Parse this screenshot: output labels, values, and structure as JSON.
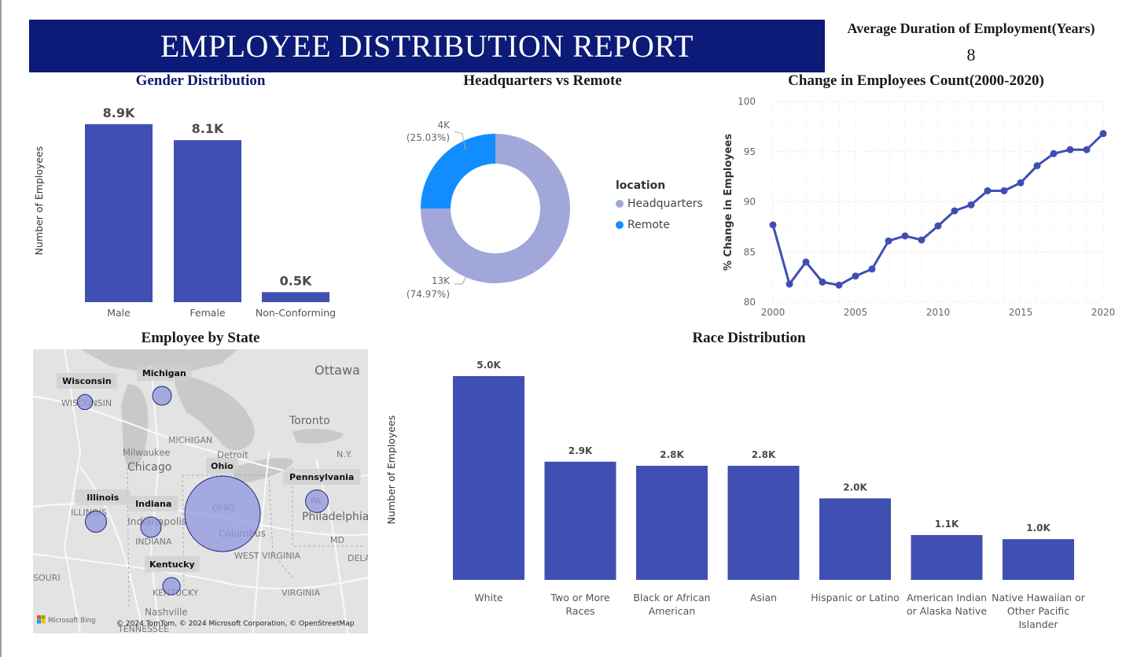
{
  "header": {
    "title": "EMPLOYEE DISTRIBUTION REPORT",
    "kpi_label": "Average Duration of Employment(Years)",
    "kpi_value": "8"
  },
  "colors": {
    "banner": "#0c1a78",
    "bar": "#3f4fb2",
    "headquarters": "#a2a7da",
    "remote": "#118dff",
    "line": "#3f4fb2",
    "bubble": "#8f95dd"
  },
  "gender": {
    "title": "Gender Distribution",
    "chart_data": {
      "type": "bar",
      "categories": [
        "Male",
        "Female",
        "Non-Conforming"
      ],
      "values": [
        8.9,
        8.1,
        0.5
      ],
      "labels": [
        "8.9K",
        "8.1K",
        "0.5K"
      ],
      "ylabel": "Number of Employees",
      "ylim": [
        0,
        9.6
      ]
    }
  },
  "location": {
    "title": "Headquarters vs Remote",
    "legend_title": "location",
    "chart_data": {
      "type": "pie",
      "categories": [
        "Headquarters",
        "Remote"
      ],
      "values": [
        74.97,
        25.03
      ],
      "labels": [
        "13K",
        "4K"
      ],
      "pct_labels": [
        "(74.97%)",
        "(25.03%)"
      ]
    }
  },
  "change": {
    "title": "Change in Employees Count(2000-2020)",
    "chart_data": {
      "type": "line",
      "x": [
        2000,
        2001,
        2002,
        2003,
        2004,
        2005,
        2006,
        2007,
        2008,
        2009,
        2010,
        2011,
        2012,
        2013,
        2014,
        2015,
        2016,
        2017,
        2018,
        2019,
        2020
      ],
      "values": [
        87.7,
        81.8,
        84.0,
        82.0,
        81.7,
        82.6,
        83.3,
        86.1,
        86.6,
        86.2,
        87.6,
        89.1,
        89.7,
        91.1,
        91.1,
        91.9,
        93.6,
        94.8,
        95.2,
        95.2,
        96.8
      ],
      "ylabel": "% Change in Employees",
      "ylim": [
        80,
        100
      ],
      "yticks": [
        "80",
        "85",
        "90",
        "95",
        "100"
      ],
      "xticks": [
        "2000",
        "2005",
        "2010",
        "2015",
        "2020"
      ],
      "grid": true
    }
  },
  "states": {
    "title": "Employee by State",
    "bubbles": [
      {
        "name": "Wisconsin",
        "size": 0.2
      },
      {
        "name": "Michigan",
        "size": 0.25
      },
      {
        "name": "Ohio",
        "size": 1.0
      },
      {
        "name": "Pennsylvania",
        "size": 0.3
      },
      {
        "name": "Illinois",
        "size": 0.28
      },
      {
        "name": "Indiana",
        "size": 0.27
      },
      {
        "name": "Kentucky",
        "size": 0.23
      }
    ],
    "place_labels": [
      "Ottawa",
      "Toronto",
      "WISCONSIN",
      "MICHIGAN",
      "Milwaukee",
      "Chicago",
      "Detroit",
      "N.Y.",
      "ILLINOIS",
      "Indianapolis",
      "INDIANA",
      "OHIO",
      "Columbus",
      "Philadelphia",
      "PA",
      "MD",
      "WEST VIRGINIA",
      "DELA",
      "SOURI",
      "KENTUCKY",
      "VIRGINIA",
      "Nashville",
      "TENNESSEE"
    ],
    "attribution": "© 2024 TomTom, © 2024 Microsoft Corporation, © OpenStreetMap",
    "logo": "Microsoft Bing"
  },
  "race": {
    "title": "Race Distribution",
    "chart_data": {
      "type": "bar",
      "categories": [
        "White",
        "Two or More Races",
        "Black or African American",
        "Asian",
        "Hispanic or Latino",
        "American Indian or Alaska Native",
        "Native Hawaiian or Other Pacific Islander"
      ],
      "category_lines": [
        [
          "White"
        ],
        [
          "Two or More",
          "Races"
        ],
        [
          "Black or African",
          "American"
        ],
        [
          "Asian"
        ],
        [
          "Hispanic or Latino"
        ],
        [
          "American Indian",
          "or Alaska Native"
        ],
        [
          "Native Hawaiian or",
          "Other Pacific",
          "Islander"
        ]
      ],
      "values": [
        5.0,
        2.9,
        2.8,
        2.8,
        2.0,
        1.1,
        1.0
      ],
      "labels": [
        "5.0K",
        "2.9K",
        "2.8K",
        "2.8K",
        "2.0K",
        "1.1K",
        "1.0K"
      ],
      "ylabel": "Number of Employees",
      "ylim": [
        0,
        5.0
      ]
    }
  }
}
